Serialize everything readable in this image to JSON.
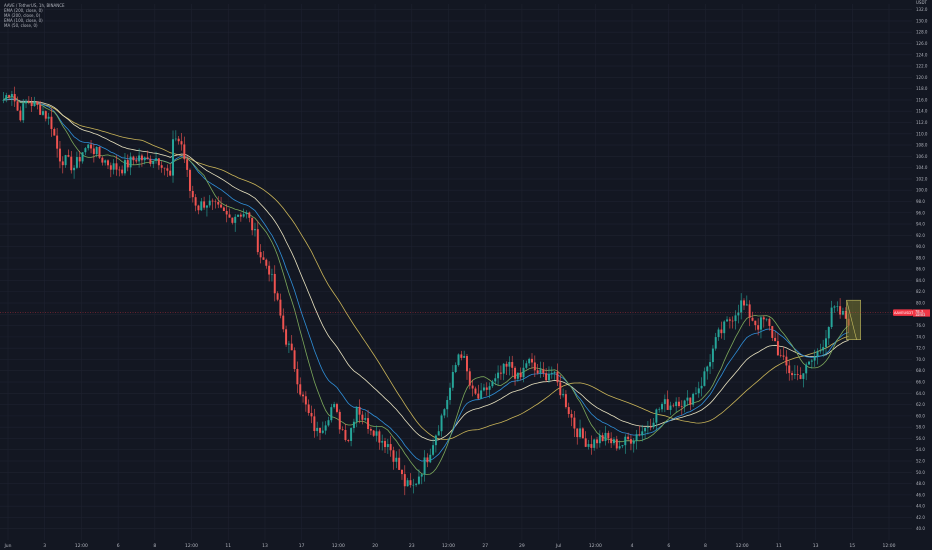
{
  "legend": {
    "symbol": "AAVE / TetherUS, 1h, BINANCE",
    "indicators": [
      "EMA (200, close, 0)",
      "MA (200, close, 0)",
      "EMA (100, close, 0)",
      "MA (50, close, 0)"
    ]
  },
  "price_tag": {
    "label": "AAVEUSDT",
    "value": "78.3",
    "sub": "12:01"
  },
  "currency": "USDT",
  "colors": {
    "background": "#131722",
    "grid": "#1e2230",
    "up": "#26a69a",
    "down": "#ef5350",
    "ema200": "#e8e2c0",
    "ma200": "#c9b458",
    "ema100": "#2f8fd8",
    "ma50": "#7ca85b",
    "price_tag": "#f23645",
    "box_fill": "#7a7a32",
    "box_stroke": "#c8c060"
  },
  "chart_data": {
    "type": "candlestick",
    "ylim": [
      38,
      133
    ],
    "y_ticks": [
      40,
      42,
      44,
      46,
      48,
      50,
      52,
      54,
      56,
      58,
      60,
      62,
      64,
      66,
      68,
      70,
      72,
      74,
      76,
      78,
      80,
      82,
      84,
      86,
      88,
      90,
      92,
      94,
      96,
      98,
      100,
      102,
      104,
      106,
      108,
      110,
      112,
      114,
      116,
      118,
      120,
      122,
      124,
      126,
      128,
      130,
      132
    ],
    "x_ticks": [
      "Jun",
      "3",
      "12:00",
      "6",
      "8",
      "12:00",
      "11",
      "13",
      "17",
      "12:00",
      "20",
      "23",
      "12:00",
      "27",
      "29",
      "Jul",
      "12:00",
      "4",
      "6",
      "8",
      "12:00",
      "11",
      "13",
      "15",
      "12:00"
    ],
    "close_path": [
      [
        0,
        116
      ],
      [
        2,
        118
      ],
      [
        4,
        113
      ],
      [
        6,
        116
      ],
      [
        8,
        115
      ],
      [
        10,
        114
      ],
      [
        12,
        112
      ],
      [
        14,
        106
      ],
      [
        16,
        105
      ],
      [
        18,
        104
      ],
      [
        20,
        107
      ],
      [
        22,
        108
      ],
      [
        24,
        106
      ],
      [
        26,
        105
      ],
      [
        28,
        104
      ],
      [
        30,
        104
      ],
      [
        32,
        105
      ],
      [
        34,
        106
      ],
      [
        36,
        105
      ],
      [
        38,
        106
      ],
      [
        40,
        105
      ],
      [
        42,
        102
      ],
      [
        43,
        110
      ],
      [
        45,
        108
      ],
      [
        47,
        100
      ],
      [
        49,
        97
      ],
      [
        51,
        98
      ],
      [
        53,
        97
      ],
      [
        55,
        96
      ],
      [
        57,
        95
      ],
      [
        59,
        96
      ],
      [
        61,
        96
      ],
      [
        63,
        93
      ],
      [
        65,
        88
      ],
      [
        67,
        86
      ],
      [
        69,
        80
      ],
      [
        71,
        74
      ],
      [
        73,
        70
      ],
      [
        75,
        64
      ],
      [
        77,
        60
      ],
      [
        79,
        57
      ],
      [
        81,
        59
      ],
      [
        83,
        62
      ],
      [
        85,
        58
      ],
      [
        87,
        56
      ],
      [
        89,
        62
      ],
      [
        91,
        59
      ],
      [
        93,
        58
      ],
      [
        95,
        56
      ],
      [
        97,
        55
      ],
      [
        99,
        52
      ],
      [
        101,
        48
      ],
      [
        103,
        47
      ],
      [
        105,
        50
      ],
      [
        107,
        53
      ],
      [
        109,
        57
      ],
      [
        111,
        61
      ],
      [
        113,
        66
      ],
      [
        115,
        72
      ],
      [
        116,
        70
      ],
      [
        118,
        64
      ],
      [
        120,
        63
      ],
      [
        122,
        65
      ],
      [
        124,
        66
      ],
      [
        126,
        68
      ],
      [
        128,
        69
      ],
      [
        130,
        66
      ],
      [
        132,
        70
      ],
      [
        134,
        68
      ],
      [
        136,
        67
      ],
      [
        138,
        68
      ],
      [
        140,
        65
      ],
      [
        142,
        62
      ],
      [
        144,
        58
      ],
      [
        146,
        56
      ],
      [
        148,
        55
      ],
      [
        150,
        56
      ],
      [
        152,
        56
      ],
      [
        154,
        55
      ],
      [
        156,
        55
      ],
      [
        158,
        56
      ],
      [
        160,
        57
      ],
      [
        162,
        58
      ],
      [
        164,
        60
      ],
      [
        166,
        62
      ],
      [
        168,
        62
      ],
      [
        170,
        63
      ],
      [
        172,
        62
      ],
      [
        174,
        64
      ],
      [
        176,
        66
      ],
      [
        178,
        70
      ],
      [
        180,
        74
      ],
      [
        182,
        76
      ],
      [
        184,
        78
      ],
      [
        186,
        80
      ],
      [
        188,
        78
      ],
      [
        190,
        76
      ],
      [
        192,
        77
      ],
      [
        194,
        74
      ],
      [
        196,
        70
      ],
      [
        198,
        68
      ],
      [
        200,
        67
      ],
      [
        202,
        68
      ],
      [
        204,
        70
      ],
      [
        206,
        72
      ],
      [
        208,
        76
      ],
      [
        209,
        79
      ],
      [
        211,
        78
      ],
      [
        213,
        77
      ]
    ],
    "price_range_box": {
      "high": 80.5,
      "low": 73.5
    }
  }
}
